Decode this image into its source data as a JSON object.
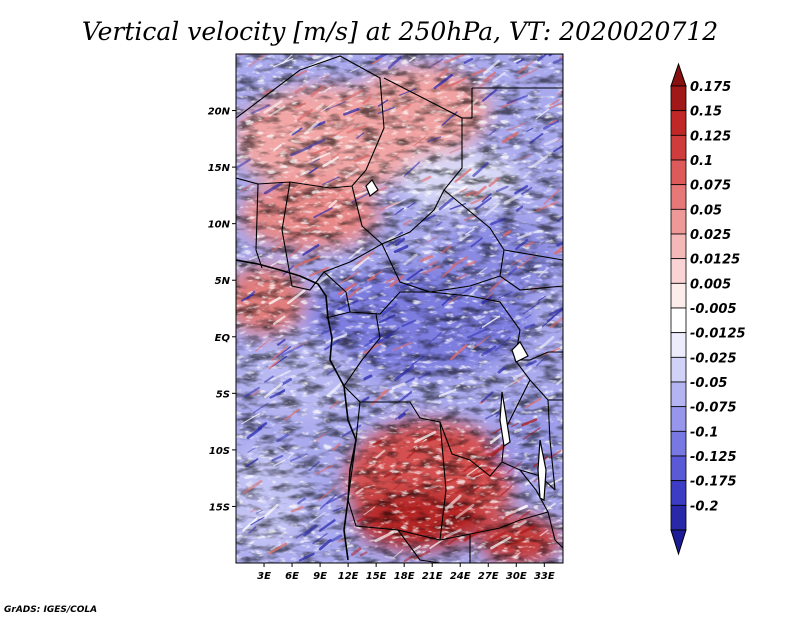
{
  "title": "Vertical velocity [m/s] at 250hPa, VT: 2020020712",
  "credit": "GrADS: IGES/COLA",
  "map": {
    "lon_range": [
      0,
      35
    ],
    "lat_range": [
      -20,
      25
    ],
    "lon_ticks": [
      {
        "value": 3,
        "label": "3E"
      },
      {
        "value": 6,
        "label": "6E"
      },
      {
        "value": 9,
        "label": "9E"
      },
      {
        "value": 12,
        "label": "12E"
      },
      {
        "value": 15,
        "label": "15E"
      },
      {
        "value": 18,
        "label": "18E"
      },
      {
        "value": 21,
        "label": "21E"
      },
      {
        "value": 24,
        "label": "24E"
      },
      {
        "value": 27,
        "label": "27E"
      },
      {
        "value": 30,
        "label": "30E"
      },
      {
        "value": 33,
        "label": "33E"
      }
    ],
    "lat_ticks": [
      {
        "value": 20,
        "label": "20N"
      },
      {
        "value": 15,
        "label": "15N"
      },
      {
        "value": 10,
        "label": "10N"
      },
      {
        "value": 5,
        "label": "5N"
      },
      {
        "value": 0,
        "label": "EQ"
      },
      {
        "value": -5,
        "label": "5S"
      },
      {
        "value": -10,
        "label": "10S"
      },
      {
        "value": -15,
        "label": "15S"
      }
    ]
  },
  "colorbar": {
    "levels": [
      {
        "label": "0.175",
        "color": "#a01818"
      },
      {
        "label": "0.15",
        "color": "#c02828"
      },
      {
        "label": "0.125",
        "color": "#d03c3c"
      },
      {
        "label": "0.1",
        "color": "#dc5a5a"
      },
      {
        "label": "0.075",
        "color": "#e67878"
      },
      {
        "label": "0.05",
        "color": "#ee9898"
      },
      {
        "label": "0.025",
        "color": "#f5b8b8"
      },
      {
        "label": "0.0125",
        "color": "#fad4d4"
      },
      {
        "label": "0.005",
        "color": "#fdecec"
      },
      {
        "label": "-0.005",
        "color": "#ffffff"
      },
      {
        "label": "-0.0125",
        "color": "#ececfc"
      },
      {
        "label": "-0.025",
        "color": "#d2d2f8"
      },
      {
        "label": "-0.05",
        "color": "#b4b4f2"
      },
      {
        "label": "-0.075",
        "color": "#9696ec"
      },
      {
        "label": "-0.1",
        "color": "#7878e2"
      },
      {
        "label": "-0.125",
        "color": "#5a5ad6"
      },
      {
        "label": "-0.175",
        "color": "#3c3cc4"
      },
      {
        "label": "-0.2",
        "color": "#2828a8"
      }
    ],
    "top_color": "#881010",
    "bottom_color": "#1c1c98"
  },
  "field_colors": {
    "sink": "#2c2cb0",
    "rise": "#b01c1c"
  }
}
